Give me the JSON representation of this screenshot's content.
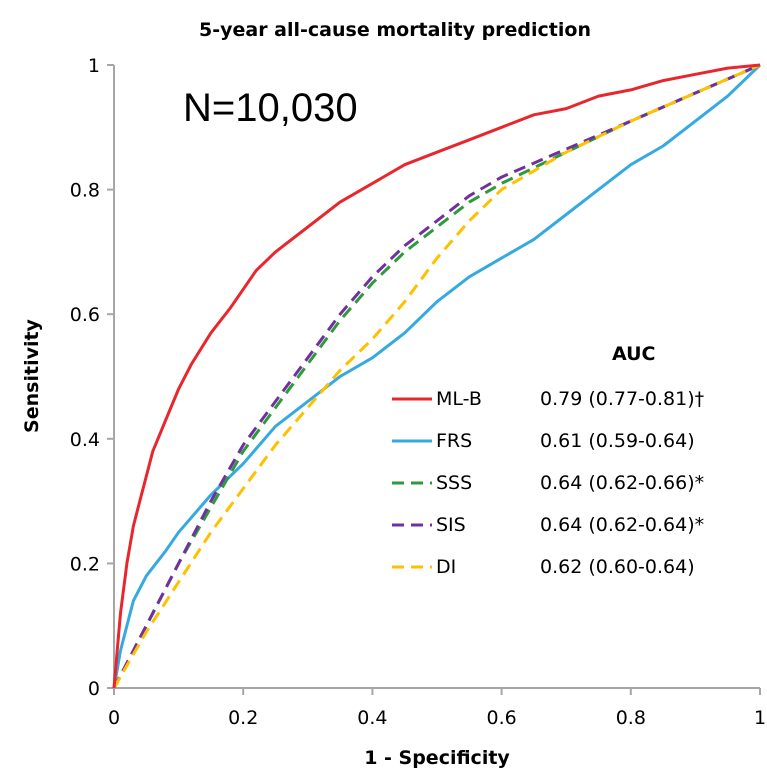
{
  "chart_data": {
    "type": "line",
    "title": "5-year all-cause mortality prediction",
    "xlabel": "1 - Specificity",
    "ylabel": "Sensitivity",
    "xlim": [
      0,
      1
    ],
    "ylim": [
      0,
      1
    ],
    "xticks": [
      "0",
      "0.2",
      "0.4",
      "0.6",
      "0.8",
      "1"
    ],
    "yticks": [
      "0",
      "0.2",
      "0.4",
      "0.6",
      "0.8",
      "1"
    ],
    "grid": false,
    "annotation": "N=10,030",
    "legend": {
      "position": "bottom-right",
      "header": "AUC"
    },
    "series": [
      {
        "name": "ML-B",
        "auc": "0.79 (0.77-0.81)†",
        "color": "#e8262d",
        "dash": "solid",
        "points": [
          [
            0,
            0
          ],
          [
            0.005,
            0.06
          ],
          [
            0.01,
            0.12
          ],
          [
            0.02,
            0.2
          ],
          [
            0.03,
            0.26
          ],
          [
            0.04,
            0.3
          ],
          [
            0.05,
            0.34
          ],
          [
            0.06,
            0.38
          ],
          [
            0.08,
            0.43
          ],
          [
            0.1,
            0.48
          ],
          [
            0.12,
            0.52
          ],
          [
            0.15,
            0.57
          ],
          [
            0.18,
            0.61
          ],
          [
            0.2,
            0.64
          ],
          [
            0.22,
            0.67
          ],
          [
            0.25,
            0.7
          ],
          [
            0.3,
            0.74
          ],
          [
            0.35,
            0.78
          ],
          [
            0.4,
            0.81
          ],
          [
            0.45,
            0.84
          ],
          [
            0.5,
            0.86
          ],
          [
            0.55,
            0.88
          ],
          [
            0.6,
            0.9
          ],
          [
            0.65,
            0.92
          ],
          [
            0.7,
            0.93
          ],
          [
            0.75,
            0.95
          ],
          [
            0.8,
            0.96
          ],
          [
            0.85,
            0.975
          ],
          [
            0.9,
            0.985
          ],
          [
            0.95,
            0.995
          ],
          [
            1,
            1
          ]
        ]
      },
      {
        "name": "FRS",
        "auc": "0.61 (0.59-0.64)",
        "color": "#36a9e1",
        "dash": "solid",
        "points": [
          [
            0,
            0
          ],
          [
            0.01,
            0.06
          ],
          [
            0.02,
            0.1
          ],
          [
            0.03,
            0.14
          ],
          [
            0.05,
            0.18
          ],
          [
            0.08,
            0.22
          ],
          [
            0.1,
            0.25
          ],
          [
            0.15,
            0.31
          ],
          [
            0.2,
            0.36
          ],
          [
            0.25,
            0.42
          ],
          [
            0.3,
            0.46
          ],
          [
            0.35,
            0.5
          ],
          [
            0.4,
            0.53
          ],
          [
            0.45,
            0.57
          ],
          [
            0.5,
            0.62
          ],
          [
            0.55,
            0.66
          ],
          [
            0.6,
            0.69
          ],
          [
            0.65,
            0.72
          ],
          [
            0.7,
            0.76
          ],
          [
            0.75,
            0.8
          ],
          [
            0.8,
            0.84
          ],
          [
            0.85,
            0.87
          ],
          [
            0.9,
            0.91
          ],
          [
            0.95,
            0.95
          ],
          [
            1,
            1
          ]
        ]
      },
      {
        "name": "SSS",
        "auc": "0.64 (0.62-0.66)*",
        "color": "#2e9a3a",
        "dash": "dashed",
        "points": [
          [
            0,
            0
          ],
          [
            0.05,
            0.1
          ],
          [
            0.1,
            0.2
          ],
          [
            0.15,
            0.29
          ],
          [
            0.2,
            0.38
          ],
          [
            0.25,
            0.45
          ],
          [
            0.3,
            0.52
          ],
          [
            0.35,
            0.59
          ],
          [
            0.4,
            0.65
          ],
          [
            0.45,
            0.7
          ],
          [
            0.5,
            0.74
          ],
          [
            0.55,
            0.78
          ],
          [
            0.6,
            0.81
          ],
          [
            0.7,
            0.86
          ],
          [
            0.8,
            0.91
          ],
          [
            0.9,
            0.955
          ],
          [
            1,
            1
          ]
        ]
      },
      {
        "name": "SIS",
        "auc": "0.64 (0.62-0.64)*",
        "color": "#7030a0",
        "dash": "dashed",
        "points": [
          [
            0,
            0
          ],
          [
            0.05,
            0.1
          ],
          [
            0.1,
            0.2
          ],
          [
            0.15,
            0.3
          ],
          [
            0.2,
            0.39
          ],
          [
            0.25,
            0.46
          ],
          [
            0.3,
            0.53
          ],
          [
            0.35,
            0.6
          ],
          [
            0.4,
            0.66
          ],
          [
            0.45,
            0.71
          ],
          [
            0.5,
            0.75
          ],
          [
            0.55,
            0.79
          ],
          [
            0.6,
            0.82
          ],
          [
            0.7,
            0.865
          ],
          [
            0.8,
            0.91
          ],
          [
            0.9,
            0.955
          ],
          [
            1,
            1
          ]
        ]
      },
      {
        "name": "DI",
        "auc": "0.62 (0.60-0.64)",
        "color": "#ffc000",
        "dash": "dashed",
        "points": [
          [
            0,
            0
          ],
          [
            0.05,
            0.09
          ],
          [
            0.1,
            0.17
          ],
          [
            0.15,
            0.25
          ],
          [
            0.2,
            0.32
          ],
          [
            0.25,
            0.39
          ],
          [
            0.3,
            0.45
          ],
          [
            0.35,
            0.51
          ],
          [
            0.4,
            0.56
          ],
          [
            0.45,
            0.62
          ],
          [
            0.5,
            0.69
          ],
          [
            0.55,
            0.75
          ],
          [
            0.6,
            0.8
          ],
          [
            0.7,
            0.86
          ],
          [
            0.8,
            0.91
          ],
          [
            0.9,
            0.955
          ],
          [
            1,
            1
          ]
        ]
      }
    ]
  }
}
